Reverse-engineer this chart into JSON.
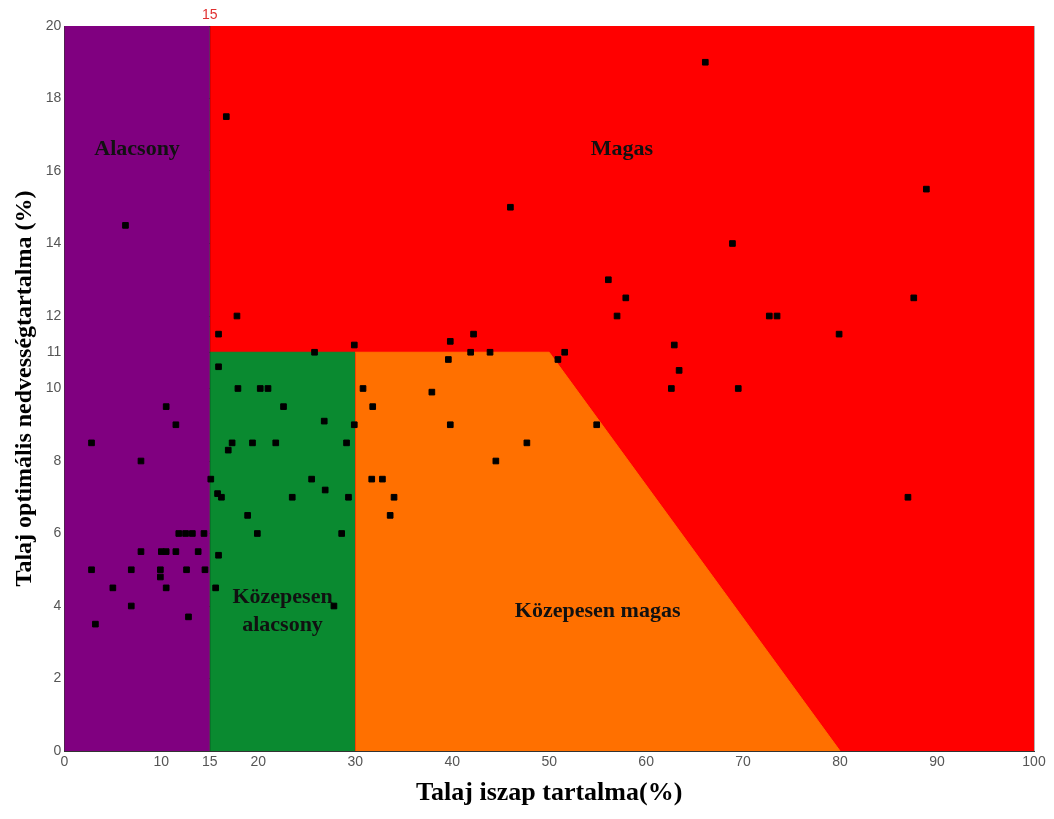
{
  "chart_data": {
    "type": "scatter",
    "xlabel": "Talaj iszap tartalma(%)",
    "ylabel": "Talaj optimális nedvességtartalma (%)",
    "xlim": [
      0,
      100
    ],
    "xticks": [
      0,
      10,
      15,
      20,
      30,
      40,
      50,
      60,
      70,
      80,
      90,
      100
    ],
    "ref_lines": [
      {
        "axis": "x",
        "value": 15,
        "label": "15"
      }
    ],
    "ylim": [
      0,
      20
    ],
    "yticks": [
      0,
      2,
      4,
      6,
      8,
      10,
      11,
      12,
      14,
      16,
      18,
      20
    ],
    "grid": true,
    "legend": false,
    "marker": "square",
    "series": [
      {
        "type": "area",
        "marker": "none",
        "name": "Magas",
        "color": "#ff0000",
        "x": [
          15,
          100
        ],
        "values": [
          20,
          20
        ]
      },
      {
        "type": "area",
        "marker": "none",
        "name": "Alacsony",
        "color": "#800080",
        "x": [
          0,
          15
        ],
        "values": [
          20,
          20
        ]
      },
      {
        "type": "area",
        "marker": "none",
        "name": "Közepesen alacsony",
        "color": "#0a8a30",
        "x": [
          15,
          30
        ],
        "values": [
          11,
          11
        ]
      },
      {
        "type": "area",
        "marker": "none",
        "name": "Közepesen magas",
        "color": "#ff7000",
        "x": [
          30,
          50,
          80
        ],
        "values": [
          11,
          11,
          0
        ]
      },
      {
        "color": "#000000",
        "x": [
          2.8,
          6.3,
          7.9,
          10.5,
          11.5,
          11.8,
          12.5,
          13.2,
          14.4,
          7.9,
          10.0,
          10.5,
          11.5,
          13.8,
          2.8,
          6.9,
          9.9,
          9.9,
          12.6,
          14.5,
          5.0,
          10.5,
          6.9,
          12.8,
          3.2,
          16.7,
          17.8,
          15.9,
          15.9,
          17.9,
          20.2,
          21.0,
          22.6,
          26.8,
          29.9,
          17.3,
          16.9,
          19.4,
          21.8,
          29.1,
          15.1,
          15.8,
          16.2,
          25.5,
          26.9,
          23.5,
          29.3,
          18.9,
          19.9,
          28.6,
          15.9,
          15.6,
          27.8,
          25.8,
          29.9,
          30.8,
          31.8,
          31.7,
          32.8,
          34.0,
          33.6,
          37.9,
          39.6,
          39.8,
          39.8,
          41.9,
          42.2,
          43.9,
          44.5,
          47.7,
          46.0,
          50.9,
          51.6,
          54.9,
          56.1,
          57.9,
          57.0,
          62.9,
          63.4,
          62.6,
          66.1,
          88.9,
          68.9,
          87.6,
          72.7,
          73.5,
          79.9,
          69.5,
          87.0
        ],
        "values": [
          8.5,
          14.5,
          8.0,
          9.5,
          9.0,
          6.0,
          6.0,
          6.0,
          6.0,
          5.5,
          5.5,
          5.5,
          5.5,
          5.5,
          5.0,
          5.0,
          5.0,
          4.8,
          5.0,
          5.0,
          4.5,
          4.5,
          4.0,
          3.7,
          3.5,
          17.5,
          12.0,
          11.5,
          10.6,
          10.0,
          10.0,
          10.0,
          9.5,
          9.1,
          9.0,
          8.5,
          8.3,
          8.5,
          8.5,
          8.5,
          7.5,
          7.1,
          7.0,
          7.5,
          7.2,
          7.0,
          7.0,
          6.5,
          6.0,
          6.0,
          5.4,
          4.5,
          4.0,
          11.0,
          11.2,
          10.0,
          9.5,
          7.5,
          7.5,
          7.0,
          6.5,
          9.9,
          10.8,
          11.3,
          9.0,
          11.0,
          11.5,
          11.0,
          8.0,
          8.5,
          15.0,
          10.8,
          11.0,
          9.0,
          13.0,
          12.5,
          12.0,
          11.2,
          10.5,
          10.0,
          19.0,
          15.5,
          14.0,
          12.5,
          12.0,
          12.0,
          11.5,
          10.0,
          7.0
        ]
      }
    ]
  }
}
